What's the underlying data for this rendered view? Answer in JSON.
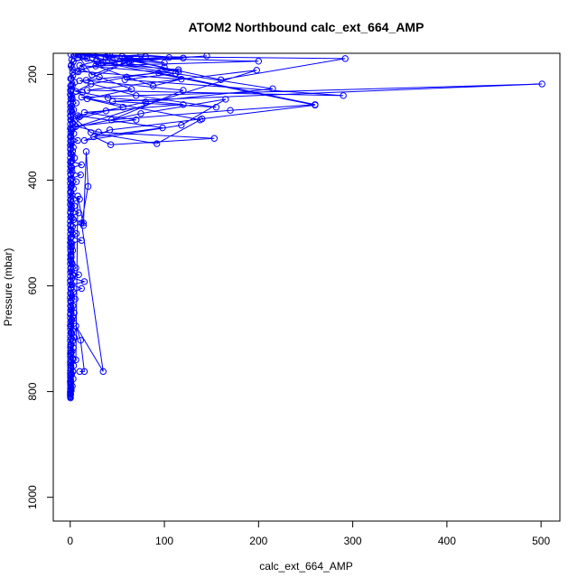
{
  "chart_data": {
    "type": "scatter",
    "title": "ATOM2 Northbound calc_ext_664_AMP",
    "xlabel": "calc_ext_664_AMP",
    "ylabel": "Pressure (mbar)",
    "xlim": [
      -18,
      520
    ],
    "ylim": [
      1045,
      160
    ],
    "y_axis_inverted": true,
    "x_ticks": [
      0,
      100,
      200,
      300,
      400,
      500
    ],
    "x_tick_labels": [
      "0",
      "100",
      "200",
      "300",
      "400",
      "500"
    ],
    "y_ticks": [
      200,
      400,
      600,
      800,
      1000
    ],
    "y_tick_labels": [
      "200",
      "400",
      "600",
      "800",
      "1000"
    ],
    "grid": false,
    "legend": "none",
    "marker": "open-circle",
    "connected_by_line": true,
    "colors": {
      "series": "#0000ff",
      "axis": "#000000",
      "background": "#ffffff"
    },
    "series": [
      {
        "x": [
          0.2,
          0.1,
          0.3,
          0.1,
          0.2,
          0.1,
          0.4,
          0.2,
          0.6,
          0.3,
          0.2,
          0.1,
          0.5,
          0.2,
          0.3,
          0.1,
          0.2,
          0.4,
          0.2,
          0.1,
          0.3,
          0.2,
          0.1,
          0.3,
          0.2,
          0.5,
          0.1,
          0.2,
          0.4,
          0.2,
          0.1,
          0.3,
          0.2,
          0.1,
          0.3,
          0.2,
          0.4,
          0.1,
          0.2,
          0.5,
          0.2,
          0.1,
          0.3,
          0.2,
          0.4,
          0.1,
          0.2,
          0.3,
          0.5,
          0.2,
          0.1,
          0.3,
          0.2,
          0.4,
          0.2,
          0.1,
          0.3,
          0.2,
          0.5,
          0.1,
          0.2,
          0.3,
          0.2,
          0.4,
          0.1,
          0.2,
          0.6,
          0.2,
          0.3,
          0.1,
          0.2,
          0.4,
          0.2,
          0.1,
          0.3,
          0.2,
          0.5,
          0.1,
          0.2,
          0.4,
          0.2,
          0.1,
          0.3,
          0.2,
          0.6,
          0.1,
          0.2,
          0.4,
          0.5,
          1.1,
          2.2,
          0.8,
          3.1,
          1.4,
          2.8,
          0.9,
          3.6,
          1.5,
          2.4,
          0.7,
          1.9,
          3.3,
          1.1,
          2.6,
          4.5,
          1.6,
          2.3,
          0.9,
          3.8,
          1.2,
          2.7,
          4.1,
          1.3,
          2.8,
          0.8,
          5.2,
          1.7,
          3.4,
          12,
          1.9,
          15,
          2.2,
          9,
          1.3,
          6,
          2.1,
          0.7,
          1.1,
          0.9,
          2.5,
          1.4,
          0.8,
          12,
          1.5,
          6.5,
          1.2,
          2.4,
          14,
          3.5,
          1.1,
          9,
          1.6,
          4.5,
          1.3,
          10,
          2.1,
          0.9,
          3.4,
          1.4,
          6.5,
          1.7,
          11,
          2.0,
          0.8,
          12,
          1.9,
          4.6,
          1.0,
          2.5,
          3.3,
          1.2,
          8,
          1.1,
          3.8,
          1.5,
          5.5,
          2.2,
          0.9,
          10,
          2.0,
          3.6,
          1.4,
          6.3,
          2.2,
          0.8,
          13,
          1.6,
          2.4,
          4.7,
          1.3,
          2.8,
          8.5,
          2.1,
          1.3,
          3.2,
          18,
          4.5,
          9,
          24,
          52,
          12,
          31,
          65,
          18,
          56,
          8,
          98,
          25,
          43,
          153,
          30,
          6,
          70,
          15,
          120,
          40,
          6,
          22,
          60,
          115,
          33,
          8,
          260,
          140,
          42,
          15,
          118,
          165,
          75,
          3,
          198,
          18,
          290,
          58,
          112,
          10,
          28,
          215,
          80,
          38,
          6,
          22,
          92,
          138,
          12,
          501,
          45,
          155,
          70,
          10,
          94,
          260,
          170,
          44,
          120,
          17,
          62,
          145,
          35,
          7,
          118,
          88,
          27,
          200,
          58,
          115,
          15,
          292,
          160,
          40,
          100,
          65,
          23,
          8,
          42,
          80,
          25,
          105,
          62,
          13,
          38,
          75,
          120,
          45,
          28,
          100,
          55,
          6,
          18
        ],
        "y": [
          810,
          808,
          806,
          804,
          802,
          800,
          797,
          794,
          791,
          788,
          785,
          781,
          777,
          773,
          769,
          765,
          760,
          755,
          750,
          745,
          740,
          734,
          728,
          722,
          716,
          710,
          703,
          696,
          689,
          682,
          675,
          668,
          661,
          654,
          646,
          638,
          630,
          622,
          614,
          606,
          598,
          590,
          582,
          574,
          566,
          558,
          550,
          542,
          534,
          526,
          518,
          510,
          502,
          494,
          486,
          478,
          470,
          462,
          454,
          446,
          438,
          430,
          422,
          414,
          406,
          398,
          390,
          382,
          374,
          366,
          358,
          350,
          342,
          334,
          326,
          318,
          310,
          302,
          294,
          286,
          278,
          270,
          262,
          254,
          246,
          238,
          230,
          222,
          805,
          798,
          790,
          783,
          776,
          768,
          762,
          757,
          751,
          744,
          737,
          731,
          724,
          717,
          711,
          704,
          698,
          691,
          684,
          678,
          671,
          665,
          658,
          651,
          645,
          638,
          632,
          625,
          619,
          612,
          605,
          598,
          592,
          585,
          579,
          572,
          566,
          559,
          553,
          546,
          540,
          533,
          527,
          520,
          514,
          507,
          501,
          494,
          488,
          481,
          475,
          468,
          462,
          455,
          449,
          442,
          436,
          429,
          423,
          416,
          410,
          403,
          397,
          390,
          384,
          377,
          371,
          364,
          358,
          351,
          345,
          338,
          332,
          325,
          319,
          312,
          306,
          299,
          293,
          286,
          280,
          273,
          267,
          260,
          254,
          247,
          241,
          234,
          228,
          221,
          215,
          208,
          202,
          195,
          189,
          182,
          176,
          170,
          165,
          163,
          160,
          176,
          190,
          205,
          228,
          246,
          262,
          278,
          301,
          318,
          333,
          321,
          309,
          298,
          286,
          272,
          257,
          244,
          232,
          218,
          205,
          191,
          179,
          168,
          258,
          284,
          305,
          325,
          296,
          247,
          274,
          301,
          192,
          230,
          240,
          210,
          198,
          183,
          175,
          227,
          252,
          269,
          285,
          310,
          331,
          286,
          243,
          218,
          251,
          262,
          240,
          212,
          197,
          257,
          268,
          286,
          230,
          211,
          176,
          165,
          178,
          194,
          209,
          222,
          184,
          175,
          169,
          195,
          165,
          170,
          210,
          165,
          187,
          173,
          201,
          163,
          164,
          166,
          162,
          168,
          171,
          160,
          167,
          163,
          169,
          174,
          172,
          178,
          166,
          161,
          164
        ]
      },
      {
        "x": [
          0.3,
          0.5,
          0.2,
          1.4,
          0.8,
          3.2,
          0.6,
          0.4,
          1.1,
          0.9,
          0.7,
          2.0,
          0.5,
          1.0,
          0.3,
          0.8,
          1.2,
          0.4,
          2.6,
          0.6,
          1.5,
          0.9,
          0.4,
          1.8,
          0.6,
          1.0,
          0.5,
          2.1,
          0.3,
          1.3,
          0.8,
          0.4,
          1.2,
          0.7,
          0.3,
          1.7,
          0.6,
          2.2,
          0.5,
          1.0,
          0.4,
          0.9,
          2.8,
          0.6,
          1.4,
          0.5,
          2.0,
          0.7,
          1.1,
          0.4,
          2.4,
          0.8,
          1.6,
          0.6
        ],
        "y": [
          812,
          796,
          780,
          766,
          752,
          739,
          726,
          713,
          700,
          688,
          676,
          664,
          652,
          640,
          628,
          616,
          604,
          592,
          580,
          568,
          556,
          544,
          532,
          520,
          508,
          496,
          484,
          472,
          460,
          448,
          436,
          424,
          412,
          400,
          388,
          376,
          364,
          352,
          340,
          328,
          316,
          304,
          292,
          280,
          268,
          256,
          244,
          232,
          220,
          208,
          196,
          184,
          172,
          162
        ]
      },
      {
        "x": [
          10,
          15,
          11,
          6,
          35,
          12,
          19,
          17,
          14,
          8,
          6
        ],
        "y": [
          762,
          762,
          703,
          676,
          762,
          481,
          412,
          346,
          486,
          430,
          740
        ]
      }
    ]
  }
}
